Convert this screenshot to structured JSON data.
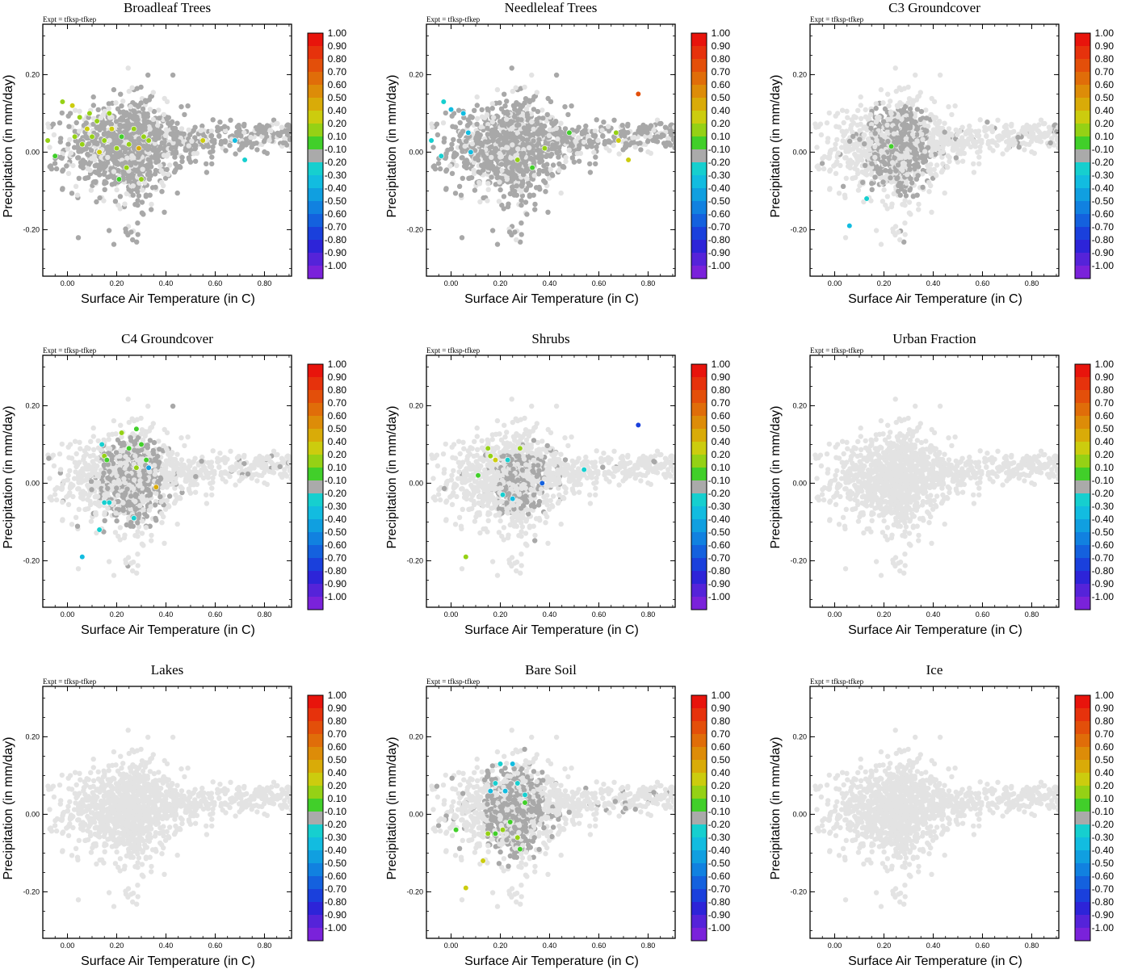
{
  "figure": {
    "expt_label": "Expt = tfksp-tfkep",
    "colors": {
      "background_points": "#e3e3e3",
      "neutral_points": "#a8a8a8",
      "axis": "#000000"
    },
    "colorbar": {
      "labels": [
        "1.00",
        "0.90",
        "0.80",
        "0.70",
        "0.60",
        "0.50",
        "0.40",
        "0.20",
        "0.10",
        "-0.10",
        "-0.20",
        "-0.30",
        "-0.40",
        "-0.50",
        "-0.60",
        "-0.70",
        "-0.80",
        "-0.90",
        "-1.00"
      ],
      "colors": [
        "#e8140c",
        "#e6320c",
        "#e34f0a",
        "#e06d09",
        "#dd8c08",
        "#d9ab08",
        "#cccc0e",
        "#95d115",
        "#41cf2a",
        "#aaaaaa",
        "#16cfcf",
        "#12bce0",
        "#109fe0",
        "#1181e0",
        "#1461de",
        "#1a40dc",
        "#2d24d8",
        "#5523d9",
        "#7a22da"
      ]
    }
  },
  "chart_data": [
    {
      "type": "scatter",
      "title": "Broadleaf Trees",
      "xlabel": "Surface Air Temperature (in C)",
      "ylabel": "Precipitation (in mm/day)",
      "xlim": [
        -0.1,
        0.91
      ],
      "ylim": [
        -0.32,
        0.33
      ],
      "xticks": [
        0.0,
        0.2,
        0.4,
        0.6,
        0.8
      ],
      "xticklabels": [
        "0.00",
        "0.20",
        "0.40",
        "0.60",
        "0.80"
      ],
      "yticks": [
        -0.2,
        0.0,
        0.2
      ],
      "yticklabels": [
        "-0.20",
        "0.00",
        "0.20"
      ],
      "colorbar_range": [
        -1.0,
        1.0
      ],
      "highlight_level": "high",
      "colored_points": [
        {
          "x": -0.02,
          "y": 0.13,
          "v": 0.3
        },
        {
          "x": 0.02,
          "y": 0.12,
          "v": 0.35
        },
        {
          "x": 0.05,
          "y": 0.09,
          "v": 0.25
        },
        {
          "x": 0.08,
          "y": 0.06,
          "v": 0.4
        },
        {
          "x": 0.1,
          "y": 0.04,
          "v": 0.3
        },
        {
          "x": 0.06,
          "y": 0.02,
          "v": 0.2
        },
        {
          "x": 0.12,
          "y": 0.08,
          "v": 0.3
        },
        {
          "x": 0.15,
          "y": 0.03,
          "v": 0.2
        },
        {
          "x": 0.18,
          "y": 0.06,
          "v": 0.35
        },
        {
          "x": 0.2,
          "y": 0.01,
          "v": 0.25
        },
        {
          "x": 0.22,
          "y": 0.04,
          "v": 0.15
        },
        {
          "x": 0.25,
          "y": 0.02,
          "v": 0.3
        },
        {
          "x": 0.27,
          "y": 0.06,
          "v": 0.2
        },
        {
          "x": 0.29,
          "y": 0.01,
          "v": 0.45
        },
        {
          "x": 0.31,
          "y": 0.04,
          "v": 0.3
        },
        {
          "x": 0.24,
          "y": -0.04,
          "v": 0.2
        },
        {
          "x": 0.21,
          "y": -0.07,
          "v": 0.15
        },
        {
          "x": 0.33,
          "y": 0.03,
          "v": 0.25
        },
        {
          "x": 0.13,
          "y": 0.0,
          "v": 0.35
        },
        {
          "x": 0.09,
          "y": 0.1,
          "v": 0.3
        },
        {
          "x": 0.03,
          "y": 0.04,
          "v": 0.2
        },
        {
          "x": -0.08,
          "y": 0.03,
          "v": 0.25
        },
        {
          "x": -0.05,
          "y": -0.01,
          "v": 0.15
        },
        {
          "x": 0.17,
          "y": 0.1,
          "v": 0.3
        },
        {
          "x": 0.55,
          "y": 0.03,
          "v": 0.4
        },
        {
          "x": 0.68,
          "y": 0.03,
          "v": -0.3
        },
        {
          "x": 0.72,
          "y": -0.02,
          "v": -0.25
        },
        {
          "x": 0.3,
          "y": -0.07,
          "v": 0.2
        }
      ]
    },
    {
      "type": "scatter",
      "title": "Needleleaf Trees",
      "xlabel": "Surface Air Temperature (in C)",
      "ylabel": "Precipitation (in mm/day)",
      "xlim": [
        -0.1,
        0.91
      ],
      "ylim": [
        -0.32,
        0.33
      ],
      "xticks": [
        0.0,
        0.2,
        0.4,
        0.6,
        0.8
      ],
      "xticklabels": [
        "0.00",
        "0.20",
        "0.40",
        "0.60",
        "0.80"
      ],
      "yticks": [
        -0.2,
        0.0,
        0.2
      ],
      "yticklabels": [
        "-0.20",
        "0.00",
        "0.20"
      ],
      "colorbar_range": [
        -1.0,
        1.0
      ],
      "highlight_level": "high",
      "colored_points": [
        {
          "x": -0.03,
          "y": 0.13,
          "v": -0.25
        },
        {
          "x": 0.0,
          "y": 0.11,
          "v": -0.3
        },
        {
          "x": 0.05,
          "y": 0.1,
          "v": -0.35
        },
        {
          "x": -0.08,
          "y": 0.03,
          "v": -0.25
        },
        {
          "x": -0.04,
          "y": -0.01,
          "v": -0.2
        },
        {
          "x": 0.07,
          "y": 0.05,
          "v": -0.3
        },
        {
          "x": 0.08,
          "y": 0.0,
          "v": -0.35
        },
        {
          "x": 0.27,
          "y": -0.02,
          "v": 0.2
        },
        {
          "x": 0.33,
          "y": -0.04,
          "v": 0.15
        },
        {
          "x": 0.38,
          "y": 0.01,
          "v": 0.2
        },
        {
          "x": 0.48,
          "y": 0.05,
          "v": 0.15
        },
        {
          "x": 0.67,
          "y": 0.05,
          "v": 0.3
        },
        {
          "x": 0.72,
          "y": -0.02,
          "v": 0.4
        },
        {
          "x": 0.76,
          "y": 0.15,
          "v": 0.8
        },
        {
          "x": 0.68,
          "y": 0.03,
          "v": 0.35
        }
      ]
    },
    {
      "type": "scatter",
      "title": "C3 Groundcover",
      "xlabel": "Surface Air Temperature (in C)",
      "ylabel": "Precipitation (in mm/day)",
      "xlim": [
        -0.1,
        0.91
      ],
      "ylim": [
        -0.32,
        0.33
      ],
      "xticks": [
        0.0,
        0.2,
        0.4,
        0.6,
        0.8
      ],
      "xticklabels": [
        "0.00",
        "0.20",
        "0.40",
        "0.60",
        "0.80"
      ],
      "yticks": [
        -0.2,
        0.0,
        0.2
      ],
      "yticklabels": [
        "-0.20",
        "0.00",
        "0.20"
      ],
      "colorbar_range": [
        -1.0,
        1.0
      ],
      "highlight_level": "medium",
      "colored_points": [
        {
          "x": 0.23,
          "y": 0.015,
          "v": 0.15
        },
        {
          "x": 0.13,
          "y": -0.12,
          "v": -0.25
        },
        {
          "x": 0.06,
          "y": -0.19,
          "v": -0.35
        }
      ]
    },
    {
      "type": "scatter",
      "title": "C4 Groundcover",
      "xlabel": "Surface Air Temperature (in C)",
      "ylabel": "Precipitation (in mm/day)",
      "xlim": [
        -0.1,
        0.91
      ],
      "ylim": [
        -0.32,
        0.33
      ],
      "xticks": [
        0.0,
        0.2,
        0.4,
        0.6,
        0.8
      ],
      "xticklabels": [
        "0.00",
        "0.20",
        "0.40",
        "0.60",
        "0.80"
      ],
      "yticks": [
        -0.2,
        0.0,
        0.2
      ],
      "yticklabels": [
        "-0.20",
        "0.00",
        "0.20"
      ],
      "colorbar_range": [
        -1.0,
        1.0
      ],
      "highlight_level": "medium",
      "colored_points": [
        {
          "x": 0.22,
          "y": 0.13,
          "v": 0.25
        },
        {
          "x": 0.28,
          "y": 0.14,
          "v": 0.15
        },
        {
          "x": 0.25,
          "y": 0.09,
          "v": 0.15
        },
        {
          "x": 0.15,
          "y": 0.07,
          "v": 0.2
        },
        {
          "x": 0.16,
          "y": 0.06,
          "v": 0.15
        },
        {
          "x": 0.3,
          "y": 0.1,
          "v": 0.15
        },
        {
          "x": 0.32,
          "y": 0.06,
          "v": 0.15
        },
        {
          "x": 0.28,
          "y": 0.04,
          "v": 0.2
        },
        {
          "x": 0.36,
          "y": -0.01,
          "v": 0.45
        },
        {
          "x": 0.14,
          "y": 0.1,
          "v": -0.25
        },
        {
          "x": 0.15,
          "y": -0.05,
          "v": -0.25
        },
        {
          "x": 0.17,
          "y": -0.05,
          "v": -0.2
        },
        {
          "x": 0.27,
          "y": -0.09,
          "v": -0.25
        },
        {
          "x": 0.13,
          "y": -0.12,
          "v": -0.25
        },
        {
          "x": 0.06,
          "y": -0.19,
          "v": -0.3
        },
        {
          "x": 0.33,
          "y": 0.04,
          "v": -0.4
        }
      ]
    },
    {
      "type": "scatter",
      "title": "Shrubs",
      "xlabel": "Surface Air Temperature (in C)",
      "ylabel": "Precipitation (in mm/day)",
      "xlim": [
        -0.1,
        0.91
      ],
      "ylim": [
        -0.32,
        0.33
      ],
      "xticks": [
        0.0,
        0.2,
        0.4,
        0.6,
        0.8
      ],
      "xticklabels": [
        "0.00",
        "0.20",
        "0.40",
        "0.60",
        "0.80"
      ],
      "yticks": [
        -0.2,
        0.0,
        0.2
      ],
      "yticklabels": [
        "-0.20",
        "0.00",
        "0.20"
      ],
      "colorbar_range": [
        -1.0,
        1.0
      ],
      "highlight_level": "low",
      "colored_points": [
        {
          "x": 0.16,
          "y": 0.07,
          "v": 0.3
        },
        {
          "x": 0.18,
          "y": 0.06,
          "v": 0.4
        },
        {
          "x": 0.15,
          "y": 0.09,
          "v": 0.25
        },
        {
          "x": 0.28,
          "y": 0.09,
          "v": 0.3
        },
        {
          "x": 0.11,
          "y": 0.02,
          "v": 0.15
        },
        {
          "x": 0.23,
          "y": 0.06,
          "v": -0.25
        },
        {
          "x": 0.21,
          "y": -0.03,
          "v": -0.25
        },
        {
          "x": 0.25,
          "y": -0.04,
          "v": -0.35
        },
        {
          "x": 0.37,
          "y": 0.0,
          "v": -0.6
        },
        {
          "x": 0.54,
          "y": 0.035,
          "v": -0.25
        },
        {
          "x": 0.76,
          "y": 0.15,
          "v": -0.75
        },
        {
          "x": 0.06,
          "y": -0.19,
          "v": 0.3
        }
      ]
    },
    {
      "type": "scatter",
      "title": "Urban Fraction",
      "xlabel": "Surface Air Temperature (in C)",
      "ylabel": "Precipitation (in mm/day)",
      "xlim": [
        -0.1,
        0.91
      ],
      "ylim": [
        -0.32,
        0.33
      ],
      "xticks": [
        0.0,
        0.2,
        0.4,
        0.6,
        0.8
      ],
      "xticklabels": [
        "0.00",
        "0.20",
        "0.40",
        "0.60",
        "0.80"
      ],
      "yticks": [
        -0.2,
        0.0,
        0.2
      ],
      "yticklabels": [
        "-0.20",
        "0.00",
        "0.20"
      ],
      "colorbar_range": [
        -1.0,
        1.0
      ],
      "highlight_level": "none",
      "colored_points": []
    },
    {
      "type": "scatter",
      "title": "Lakes",
      "xlabel": "Surface Air Temperature (in C)",
      "ylabel": "Precipitation (in mm/day)",
      "xlim": [
        -0.1,
        0.91
      ],
      "ylim": [
        -0.32,
        0.33
      ],
      "xticks": [
        0.0,
        0.2,
        0.4,
        0.6,
        0.8
      ],
      "xticklabels": [
        "0.00",
        "0.20",
        "0.40",
        "0.60",
        "0.80"
      ],
      "yticks": [
        -0.2,
        0.0,
        0.2
      ],
      "yticklabels": [
        "-0.20",
        "0.00",
        "0.20"
      ],
      "colorbar_range": [
        -1.0,
        1.0
      ],
      "highlight_level": "none",
      "colored_points": []
    },
    {
      "type": "scatter",
      "title": "Bare Soil",
      "xlabel": "Surface Air Temperature (in C)",
      "ylabel": "Precipitation (in mm/day)",
      "xlim": [
        -0.1,
        0.91
      ],
      "ylim": [
        -0.32,
        0.33
      ],
      "xticks": [
        0.0,
        0.2,
        0.4,
        0.6,
        0.8
      ],
      "xticklabels": [
        "0.00",
        "0.20",
        "0.40",
        "0.60",
        "0.80"
      ],
      "yticks": [
        -0.2,
        0.0,
        0.2
      ],
      "yticklabels": [
        "-0.20",
        "0.00",
        "0.20"
      ],
      "colorbar_range": [
        -1.0,
        1.0
      ],
      "highlight_level": "medium",
      "colored_points": [
        {
          "x": 0.2,
          "y": 0.13,
          "v": -0.25
        },
        {
          "x": 0.25,
          "y": 0.13,
          "v": -0.3
        },
        {
          "x": 0.18,
          "y": 0.08,
          "v": -0.25
        },
        {
          "x": 0.22,
          "y": 0.06,
          "v": -0.3
        },
        {
          "x": 0.27,
          "y": 0.08,
          "v": -0.25
        },
        {
          "x": 0.3,
          "y": 0.05,
          "v": -0.2
        },
        {
          "x": 0.16,
          "y": 0.06,
          "v": -0.3
        },
        {
          "x": 0.3,
          "y": 0.03,
          "v": 0.15
        },
        {
          "x": 0.15,
          "y": -0.05,
          "v": 0.2
        },
        {
          "x": 0.18,
          "y": -0.05,
          "v": 0.15
        },
        {
          "x": 0.21,
          "y": -0.04,
          "v": 0.2
        },
        {
          "x": 0.24,
          "y": -0.02,
          "v": 0.15
        },
        {
          "x": 0.27,
          "y": -0.06,
          "v": 0.2
        },
        {
          "x": 0.28,
          "y": -0.09,
          "v": 0.15
        },
        {
          "x": 0.02,
          "y": -0.04,
          "v": 0.15
        },
        {
          "x": 0.13,
          "y": -0.12,
          "v": 0.35
        },
        {
          "x": 0.06,
          "y": -0.19,
          "v": 0.35
        }
      ]
    },
    {
      "type": "scatter",
      "title": "Ice",
      "xlabel": "Surface Air Temperature (in C)",
      "ylabel": "Precipitation (in mm/day)",
      "xlim": [
        -0.1,
        0.91
      ],
      "ylim": [
        -0.32,
        0.33
      ],
      "xticks": [
        0.0,
        0.2,
        0.4,
        0.6,
        0.8
      ],
      "xticklabels": [
        "0.00",
        "0.20",
        "0.40",
        "0.60",
        "0.80"
      ],
      "yticks": [
        -0.2,
        0.0,
        0.2
      ],
      "yticklabels": [
        "-0.20",
        "0.00",
        "0.20"
      ],
      "colorbar_range": [
        -1.0,
        1.0
      ],
      "highlight_level": "none",
      "colored_points": []
    }
  ]
}
